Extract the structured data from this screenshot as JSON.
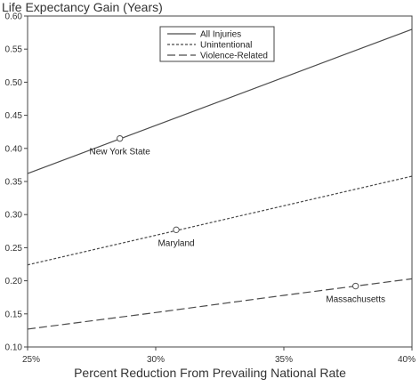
{
  "chart_data": {
    "type": "line",
    "title": "",
    "ylabel": "Life Expectancy Gain (Years)",
    "xlabel": "Percent Reduction From Prevailing National Rate",
    "xlim": [
      25,
      40
    ],
    "ylim": [
      0.1,
      0.6
    ],
    "x_ticks": [
      25,
      30,
      35,
      40
    ],
    "x_tick_labels": [
      "25%",
      "30%",
      "35%",
      "40%"
    ],
    "y_ticks": [
      0.1,
      0.15,
      0.2,
      0.25,
      0.3,
      0.35,
      0.4,
      0.45,
      0.5,
      0.55,
      0.6
    ],
    "y_tick_labels": [
      "0.10",
      "0.15",
      "0.20",
      "0.25",
      "0.30",
      "0.35",
      "0.40",
      "0.45",
      "0.50",
      "0.55",
      "0.60"
    ],
    "grid": false,
    "legend_position": "top-center",
    "series": [
      {
        "name": "All Injuries",
        "dash": "solid",
        "x": [
          25,
          40
        ],
        "y": [
          0.362,
          0.58
        ]
      },
      {
        "name": "Unintentional",
        "dash": "dotted",
        "x": [
          25,
          40
        ],
        "y": [
          0.224,
          0.358
        ]
      },
      {
        "name": "Violence-Related",
        "dash": "dashed",
        "x": [
          25,
          30,
          35,
          40
        ],
        "y": [
          0.127,
          0.152,
          0.178,
          0.203
        ]
      }
    ],
    "annotations": [
      {
        "label": "New York State",
        "x": 28.6,
        "y": 0.415,
        "series": "All Injuries"
      },
      {
        "label": "Maryland",
        "x": 30.8,
        "y": 0.277,
        "series": "Unintentional"
      },
      {
        "label": "Massachusetts",
        "x": 37.8,
        "y": 0.192,
        "series": "Violence-Related"
      }
    ]
  }
}
